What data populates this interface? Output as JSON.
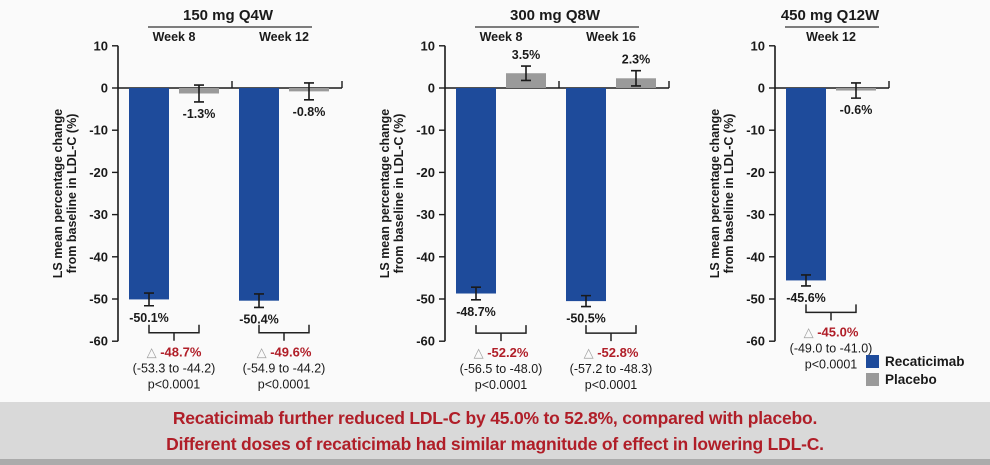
{
  "colors": {
    "recaticimab": "#1e4b9b",
    "placebo": "#9a9a9a",
    "diff_red": "#b01e28",
    "axis_black": "#1a1a1a",
    "banner_bg": "#d9d9d9",
    "banner_text": "#b01e28",
    "bottom_strip": "#ababab",
    "triangle_gray": "#a0a0a0"
  },
  "legend": {
    "items": [
      {
        "label": "Recaticimab",
        "color": "#1e4b9b"
      },
      {
        "label": "Placebo",
        "color": "#9a9a9a"
      }
    ]
  },
  "banner": {
    "line1": "Recaticimab further reduced LDL-C by 45.0% to 52.8%, compared with placebo.",
    "line2": "Different doses of recaticimab had similar magnitude of effect in lowering LDL-C."
  },
  "chart_data": {
    "type": "bar",
    "ylabel_line1": "LS mean percentage change",
    "ylabel_line2": "from baseline in LDL-C (%)",
    "ylim": [
      -60,
      10
    ],
    "yticks": [
      10,
      0,
      -10,
      -20,
      -30,
      -40,
      -50,
      -60
    ],
    "grid": false,
    "legend_position": "bottom-right",
    "series_names": [
      "Recaticimab",
      "Placebo"
    ],
    "panels": [
      {
        "title": "150 mg Q4W",
        "groups": [
          {
            "week": "Week 8",
            "recaticimab": {
              "value": -50.1,
              "label": "-50.1%",
              "err": 1.5
            },
            "placebo": {
              "value": -1.3,
              "label": "-1.3%",
              "err": 2.0
            },
            "difference": {
              "delta": "-48.7%",
              "ci": "(-53.3 to -44.2)",
              "p": "p<0.0001"
            }
          },
          {
            "week": "Week 12",
            "recaticimab": {
              "value": -50.4,
              "label": "-50.4%",
              "err": 1.6
            },
            "placebo": {
              "value": -0.8,
              "label": "-0.8%",
              "err": 2.0
            },
            "difference": {
              "delta": "-49.6%",
              "ci": "(-54.9 to -44.2)",
              "p": "p<0.0001"
            }
          }
        ]
      },
      {
        "title": "300 mg Q8W",
        "groups": [
          {
            "week": "Week 8",
            "recaticimab": {
              "value": -48.7,
              "label": "-48.7%",
              "err": 1.5
            },
            "placebo": {
              "value": 3.5,
              "label": "3.5%",
              "err": 1.7
            },
            "difference": {
              "delta": "-52.2%",
              "ci": "(-56.5 to -48.0)",
              "p": "p<0.0001"
            }
          },
          {
            "week": "Week 16",
            "recaticimab": {
              "value": -50.5,
              "label": "-50.5%",
              "err": 1.3
            },
            "placebo": {
              "value": 2.3,
              "label": "2.3%",
              "err": 1.8
            },
            "difference": {
              "delta": "-52.8%",
              "ci": "(-57.2 to -48.3)",
              "p": "p<0.0001"
            }
          }
        ]
      },
      {
        "title": "450 mg Q12W",
        "groups": [
          {
            "week": "Week 12",
            "recaticimab": {
              "value": -45.6,
              "label": "-45.6%",
              "err": 1.3
            },
            "placebo": {
              "value": -0.6,
              "label": "-0.6%",
              "err": 1.8
            },
            "difference": {
              "delta": "-45.0%",
              "ci": "(-49.0 to -41.0)",
              "p": "p<0.0001"
            }
          }
        ]
      }
    ]
  }
}
